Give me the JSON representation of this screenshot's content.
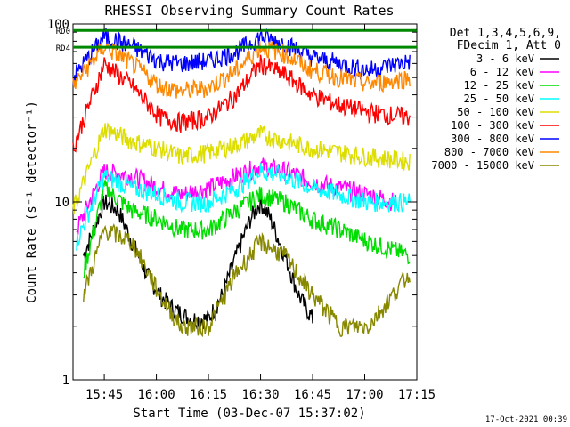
{
  "chart_data": {
    "type": "line",
    "title": "RHESSI Observing Summary Count Rates",
    "xlabel": "Start Time (03-Dec-07 15:37:02)",
    "ylabel": "Count Rate (s⁻¹ detector⁻¹)",
    "yscale": "log",
    "ylim": [
      1,
      100
    ],
    "xlim_minutes": [
      -1,
      98
    ],
    "x_tick_labels": [
      "15:45",
      "16:00",
      "16:15",
      "16:30",
      "16:45",
      "17:00",
      "17:15"
    ],
    "x_tick_minutes": [
      8,
      23,
      38,
      53,
      68,
      83,
      98
    ],
    "y_tick_labels": [
      "1",
      "10",
      "100"
    ],
    "legend_header": [
      "Det 1,3,4,5,6,9,",
      "FDecim 1, Att 0"
    ],
    "legend_placement": "right",
    "annotations": [
      {
        "label": "RD0",
        "value": 92
      },
      {
        "label": "RD4",
        "value": 74
      }
    ],
    "timestamp": "17-Oct-2021 00:39",
    "series": [
      {
        "name": "3 - 6 keV",
        "color": "#000000",
        "x": [
          2,
          8,
          12,
          16,
          20,
          24,
          28,
          33,
          38,
          42,
          46,
          50,
          53,
          56,
          60,
          64,
          68
        ],
        "y": [
          5,
          10,
          9,
          6,
          4,
          3,
          2.5,
          2.2,
          2.2,
          3,
          5,
          8,
          10,
          8,
          5,
          3,
          2.2
        ]
      },
      {
        "name": "6 - 12 keV",
        "color": "#ff00ff",
        "x": [
          0,
          8,
          16,
          24,
          30,
          38,
          46,
          53,
          60,
          68,
          76,
          84,
          92
        ],
        "y": [
          7,
          15,
          14,
          12,
          11,
          12,
          14,
          16,
          15,
          13,
          12,
          11,
          10
        ]
      },
      {
        "name": "12 - 25 keV",
        "color": "#00dd00",
        "x": [
          2,
          8,
          16,
          24,
          30,
          38,
          46,
          53,
          60,
          68,
          76,
          84,
          96
        ],
        "y": [
          4,
          12,
          9,
          8,
          7,
          7,
          9,
          11,
          10,
          8,
          7,
          6,
          5
        ]
      },
      {
        "name": "25 - 50 keV",
        "color": "#00ffff",
        "x": [
          0,
          8,
          16,
          24,
          30,
          38,
          46,
          53,
          60,
          68,
          76,
          84,
          96
        ],
        "y": [
          6,
          14,
          12,
          11,
          10,
          10,
          12,
          15,
          14,
          12,
          11,
          10,
          10
        ]
      },
      {
        "name": "50 - 100 keV",
        "color": "#dddd00",
        "x": [
          -1,
          8,
          16,
          24,
          30,
          38,
          46,
          53,
          60,
          68,
          76,
          84,
          96
        ],
        "y": [
          9,
          26,
          22,
          20,
          18,
          19,
          21,
          24,
          22,
          20,
          19,
          18,
          17
        ]
      },
      {
        "name": "100 - 300 keV",
        "color": "#ff0000",
        "x": [
          -1,
          8,
          16,
          24,
          30,
          38,
          46,
          53,
          60,
          68,
          76,
          84,
          96
        ],
        "y": [
          20,
          60,
          45,
          30,
          28,
          30,
          40,
          60,
          52,
          40,
          35,
          32,
          30
        ]
      },
      {
        "name": "300 - 800 keV",
        "color": "#0000ff",
        "x": [
          -1,
          8,
          16,
          24,
          30,
          38,
          46,
          53,
          60,
          68,
          76,
          84,
          96
        ],
        "y": [
          50,
          85,
          75,
          62,
          60,
          62,
          70,
          85,
          78,
          65,
          60,
          55,
          62
        ]
      },
      {
        "name": "800 - 7000 keV",
        "color": "#ff8800",
        "x": [
          -1,
          8,
          16,
          24,
          30,
          38,
          46,
          53,
          60,
          68,
          76,
          84,
          96
        ],
        "y": [
          45,
          75,
          60,
          45,
          42,
          44,
          55,
          75,
          68,
          55,
          50,
          46,
          50
        ]
      },
      {
        "name": "7000 - 15000 keV",
        "color": "#888800",
        "x": [
          2,
          8,
          16,
          24,
          30,
          38,
          46,
          53,
          60,
          68,
          76,
          84,
          96
        ],
        "y": [
          3,
          7,
          6,
          3,
          2,
          2,
          4,
          6,
          5,
          3,
          2,
          2,
          4
        ]
      }
    ],
    "grid": false
  }
}
